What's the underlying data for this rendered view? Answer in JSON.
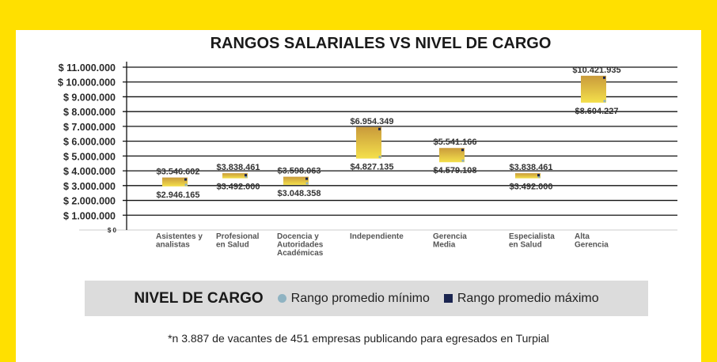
{
  "colors": {
    "page_background": "#FFE000",
    "card_background": "#FFFFFF",
    "bar_top": "#C99A3B",
    "bar_bottom": "#F4E04B",
    "min_marker": "#8FB3C2",
    "max_marker": "#1B2550",
    "legend_background": "#DCDCDC"
  },
  "chart_data": {
    "type": "bar",
    "subtype": "floating-range",
    "title": "RANGOS SALARIALES VS NIVEL DE CARGO",
    "ylim": [
      0,
      11000000
    ],
    "y_ticks": [
      0,
      1000000,
      2000000,
      3000000,
      4000000,
      5000000,
      6000000,
      7000000,
      8000000,
      9000000,
      10000000,
      11000000
    ],
    "y_tick_labels": [
      "$ 0",
      "$ 1.000.000",
      "$ 2.000.000",
      "$ 3.000.000",
      "$ 4.000.000",
      "$ 5.000.000",
      "$ 6.000.000",
      "$ 7.000.000",
      "$ 8.000.000",
      "$ 9.000.000",
      "$ 10.000.000",
      "$ 11.000.000"
    ],
    "categories": [
      [
        "Asistentes y",
        "analistas"
      ],
      [
        "Profesional",
        "en Salud"
      ],
      [
        "Docencia y",
        "Autoridades",
        "Académicas"
      ],
      [
        "Independiente"
      ],
      [
        "Gerencia",
        "Media"
      ],
      [
        "Especialista",
        "en Salud"
      ],
      [
        "Alta",
        "Gerencia"
      ]
    ],
    "series": [
      {
        "name": "Rango promedio mínimo",
        "values": [
          2946165,
          3492000,
          3048358,
          4827135,
          4579108,
          3492000,
          8604227
        ],
        "labels": [
          "$2.946.165",
          "$3.492.000",
          "$3.048.358",
          "$4.827.135",
          "$4.579.108",
          "$3.492.000",
          "$8.604.227"
        ]
      },
      {
        "name": "Rango promedio máximo",
        "values": [
          3546602,
          3838461,
          3598063,
          6954349,
          5541166,
          3838461,
          10421935
        ],
        "labels": [
          "$3.546.602",
          "$3.838.461",
          "$3.598.063",
          "$6.954.349",
          "$5.541.166",
          "$3.838.461",
          "$10.421.935"
        ]
      }
    ],
    "grid": true,
    "legend_position": "bottom"
  },
  "legend": {
    "title": "NIVEL DE CARGO",
    "min_label": "Rango promedio mínimo",
    "max_label": "Rango promedio máximo"
  },
  "footnote": "*n 3.887 de vacantes de 451 empresas publicando para egresados en Turpial"
}
